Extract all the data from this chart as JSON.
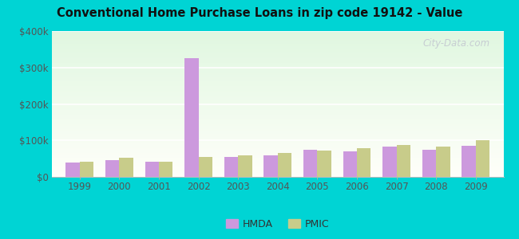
{
  "title": "Conventional Home Purchase Loans in zip code 19142 - Value",
  "years": [
    1999,
    2000,
    2001,
    2002,
    2003,
    2004,
    2005,
    2006,
    2007,
    2008,
    2009
  ],
  "hmda": [
    40000,
    45000,
    42000,
    325000,
    55000,
    60000,
    75000,
    70000,
    82000,
    75000,
    85000
  ],
  "pmic": [
    42000,
    52000,
    42000,
    55000,
    60000,
    65000,
    72000,
    78000,
    88000,
    82000,
    100000
  ],
  "hmda_color": "#cc99dd",
  "pmic_color": "#c8cc8a",
  "ylim": [
    0,
    400000
  ],
  "yticks": [
    0,
    100000,
    200000,
    300000,
    400000
  ],
  "ytick_labels": [
    "$0",
    "$100k",
    "$200k",
    "$300k",
    "$400k"
  ],
  "bg_outer": "#00d4d4",
  "watermark": "City-Data.com",
  "bar_width": 0.35,
  "legend_hmda": "HMDA",
  "legend_pmic": "PMIC"
}
